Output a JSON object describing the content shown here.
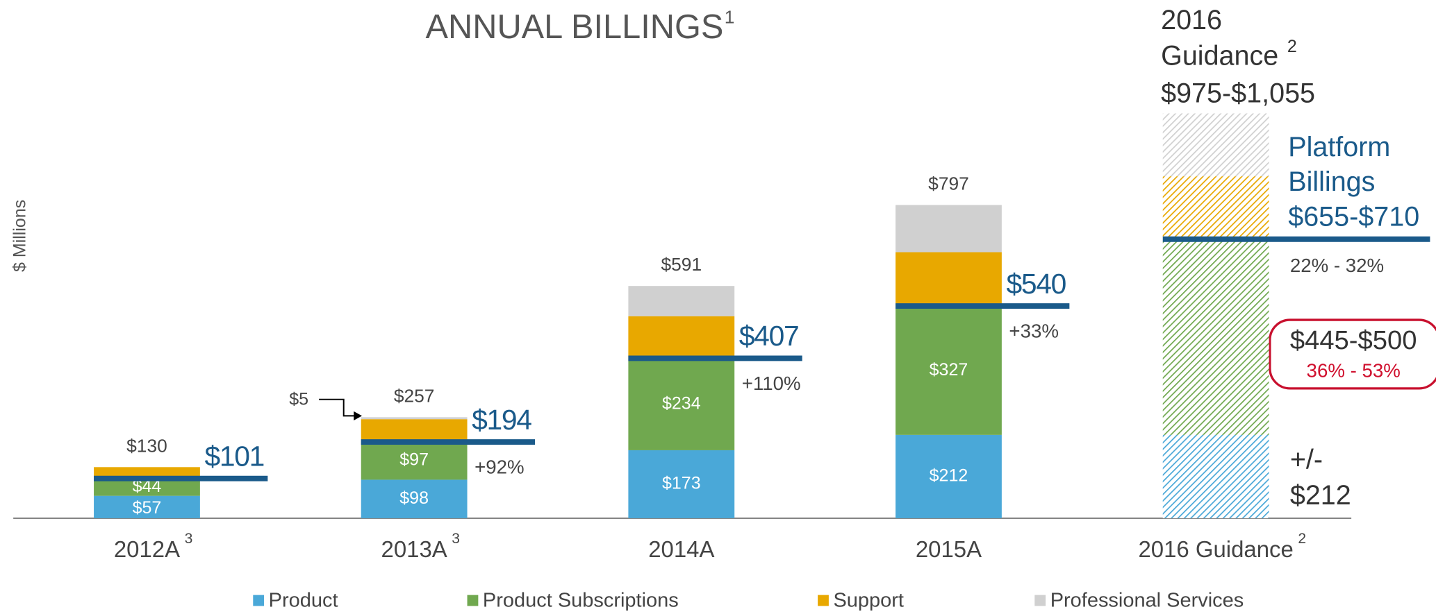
{
  "chart_data": {
    "type": "stacked_bar",
    "title": "ANNUAL BILLINGS",
    "title_note": "1",
    "y_label": "$ Millions",
    "categories": [
      "2012A",
      "2013A",
      "2014A",
      "2015A",
      "2016 Guidance"
    ],
    "category_notes": [
      "3",
      "3",
      null,
      null,
      "2"
    ],
    "hatched": [
      false,
      false,
      false,
      false,
      true
    ],
    "ylim": [
      0,
      1100
    ],
    "series": [
      {
        "name": "Product",
        "color": "#4aa8d8",
        "values": [
          57,
          98,
          173,
          212,
          212
        ],
        "value_labels": [
          "$57",
          "$98",
          "$173",
          "$212",
          null
        ]
      },
      {
        "name": "Product Subscriptions",
        "color": "#70a84f",
        "values": [
          44,
          97,
          234,
          327,
          498
        ],
        "value_labels": [
          "$44",
          "$97",
          "$234",
          "$327",
          null
        ]
      },
      {
        "name": "Support",
        "color": "#e8a800",
        "values": [
          29,
          57,
          107,
          138,
          160
        ],
        "value_labels": [
          null,
          null,
          null,
          null,
          null
        ]
      },
      {
        "name": "Professional Services",
        "color": "#d0d0d0",
        "values": [
          0,
          5,
          77,
          120,
          160
        ],
        "value_labels": [
          null,
          "$5",
          null,
          null,
          null
        ]
      }
    ],
    "totals": [
      130,
      257,
      591,
      797,
      null
    ],
    "total_labels": [
      "$130",
      "$257",
      "$591",
      "$797",
      null
    ],
    "platform_billings": {
      "color": "#1a5a8a",
      "values": [
        101,
        194,
        407,
        540,
        710
      ],
      "value_labels": [
        "$101",
        "$194",
        "$407",
        "$540",
        null
      ],
      "growth_labels": [
        null,
        "+92%",
        "+110%",
        "+33%",
        null
      ]
    },
    "guidance": {
      "year": "2016",
      "heading": "Guidance",
      "heading_note": "2",
      "range": "$975-$1,055",
      "platform_title_1": "Platform",
      "platform_title_2": "Billings",
      "platform_range": "$655-$710",
      "platform_growth": "22% - 32%",
      "subscriptions_range": "$445-$500",
      "subscriptions_growth": "36% - 53%",
      "product_prefix": "+/-",
      "product_value": "$212"
    }
  }
}
